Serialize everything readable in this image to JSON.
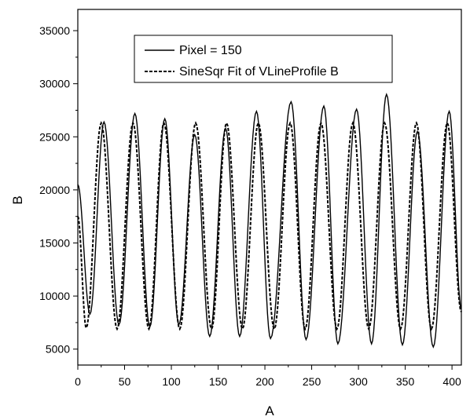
{
  "chart_data": {
    "type": "line",
    "title": "",
    "xlabel": "A",
    "ylabel": "B",
    "xlim": [
      0,
      410
    ],
    "ylim": [
      3500,
      37000
    ],
    "x_ticks": [
      "0",
      "50",
      "100",
      "150",
      "200",
      "250",
      "300",
      "350",
      "400"
    ],
    "y_ticks": [
      "5000",
      "10000",
      "15000",
      "20000",
      "25000",
      "30000",
      "35000"
    ],
    "grid": false,
    "legend_position": "top-center",
    "series": [
      {
        "name": "Pixel = 150",
        "line_style": "solid",
        "color": "#000000",
        "points": [
          [
            0,
            20500
          ],
          [
            13,
            8300
          ],
          [
            28,
            26400
          ],
          [
            44,
            7300
          ],
          [
            61,
            27200
          ],
          [
            77,
            7100
          ],
          [
            93,
            26700
          ],
          [
            108,
            7300
          ],
          [
            125,
            25200
          ],
          [
            141,
            6200
          ],
          [
            158,
            25800
          ],
          [
            173,
            6200
          ],
          [
            191,
            27400
          ],
          [
            206,
            6000
          ],
          [
            228,
            28300
          ],
          [
            244,
            5900
          ],
          [
            263,
            27900
          ],
          [
            278,
            5500
          ],
          [
            298,
            27600
          ],
          [
            314,
            5500
          ],
          [
            330,
            29000
          ],
          [
            347,
            5400
          ],
          [
            363,
            25500
          ],
          [
            380,
            5200
          ],
          [
            397,
            27400
          ],
          [
            410,
            8800
          ]
        ]
      },
      {
        "name": "SineSqr Fit of VLineProfile B",
        "line_style": "dashed",
        "color": "#000000",
        "points": [
          [
            0,
            17500
          ],
          [
            9,
            7000
          ],
          [
            25,
            26300
          ],
          [
            42,
            6900
          ],
          [
            59,
            26300
          ],
          [
            76,
            6900
          ],
          [
            92,
            26300
          ],
          [
            109,
            6900
          ],
          [
            126,
            26300
          ],
          [
            143,
            6900
          ],
          [
            159,
            26300
          ],
          [
            176,
            6900
          ],
          [
            193,
            26300
          ],
          [
            210,
            6900
          ],
          [
            227,
            26300
          ],
          [
            243,
            6900
          ],
          [
            260,
            26300
          ],
          [
            277,
            6900
          ],
          [
            294,
            26300
          ],
          [
            311,
            6900
          ],
          [
            328,
            26300
          ],
          [
            345,
            6900
          ],
          [
            362,
            26300
          ],
          [
            378,
            6900
          ],
          [
            395,
            26300
          ],
          [
            410,
            8500
          ]
        ]
      }
    ]
  }
}
